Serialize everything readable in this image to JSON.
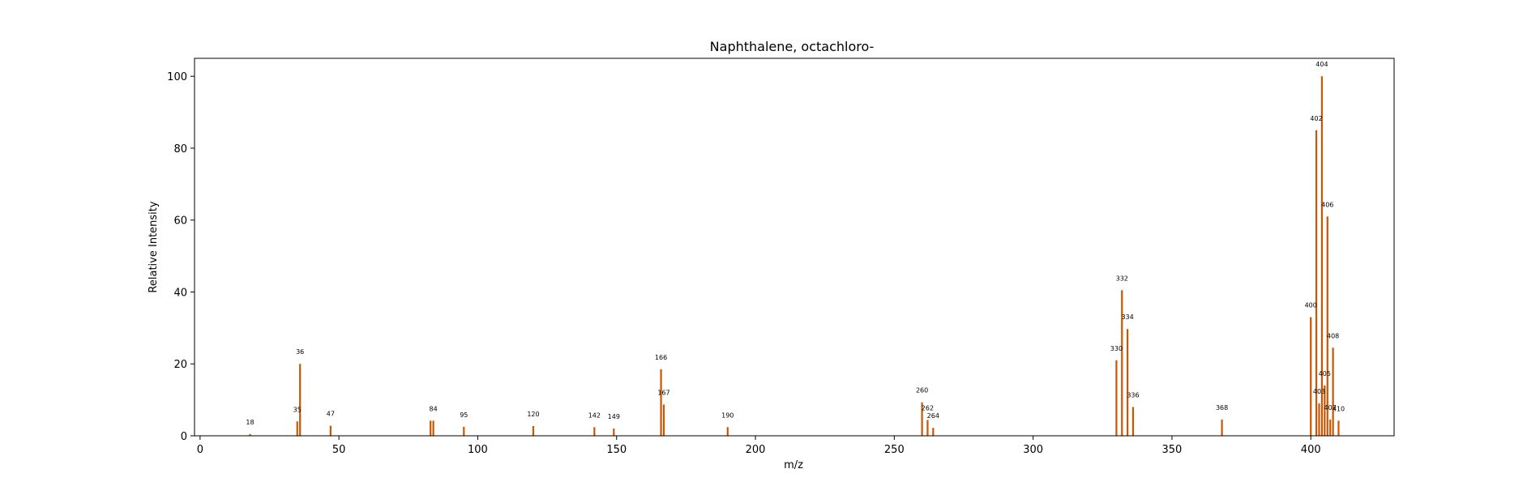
{
  "chart_data": {
    "type": "bar",
    "title": "Naphthalene, octachloro-",
    "xlabel": "m/z",
    "ylabel": "Relative Intensity",
    "xlim": [
      -2,
      430
    ],
    "ylim": [
      0,
      105
    ],
    "xticks": [
      0,
      50,
      100,
      150,
      200,
      250,
      300,
      350,
      400
    ],
    "yticks": [
      0,
      20,
      40,
      60,
      80,
      100
    ],
    "grid": false,
    "bar_color": "#cc5500",
    "peaks": [
      {
        "x": 18,
        "y": 0.5,
        "label": "18"
      },
      {
        "x": 35,
        "y": 4,
        "label": "35"
      },
      {
        "x": 36,
        "y": 20,
        "label": "36"
      },
      {
        "x": 47,
        "y": 2.8,
        "label": "47"
      },
      {
        "x": 83,
        "y": 4.2,
        "label": ""
      },
      {
        "x": 84,
        "y": 4.2,
        "label": "84"
      },
      {
        "x": 95,
        "y": 2.5,
        "label": "95"
      },
      {
        "x": 120,
        "y": 2.7,
        "label": "120"
      },
      {
        "x": 142,
        "y": 2.4,
        "label": "142"
      },
      {
        "x": 149,
        "y": 2.0,
        "label": "149"
      },
      {
        "x": 166,
        "y": 18.5,
        "label": "166"
      },
      {
        "x": 167,
        "y": 8.7,
        "label": "167"
      },
      {
        "x": 190,
        "y": 2.4,
        "label": "190"
      },
      {
        "x": 260,
        "y": 9.3,
        "label": "260"
      },
      {
        "x": 262,
        "y": 4.4,
        "label": "262"
      },
      {
        "x": 264,
        "y": 2.2,
        "label": "264"
      },
      {
        "x": 330,
        "y": 21,
        "label": "330"
      },
      {
        "x": 332,
        "y": 40.5,
        "label": "332"
      },
      {
        "x": 334,
        "y": 29.7,
        "label": "334"
      },
      {
        "x": 336,
        "y": 8.0,
        "label": "336"
      },
      {
        "x": 368,
        "y": 4.5,
        "label": "368"
      },
      {
        "x": 400,
        "y": 33,
        "label": "400"
      },
      {
        "x": 402,
        "y": 85,
        "label": "402"
      },
      {
        "x": 403,
        "y": 9,
        "label": "403"
      },
      {
        "x": 404,
        "y": 100,
        "label": "404"
      },
      {
        "x": 405,
        "y": 14,
        "label": "405"
      },
      {
        "x": 406,
        "y": 61,
        "label": "406"
      },
      {
        "x": 407,
        "y": 4.5,
        "label": "407"
      },
      {
        "x": 408,
        "y": 24.5,
        "label": "408"
      },
      {
        "x": 410,
        "y": 4.2,
        "label": "410"
      }
    ]
  }
}
